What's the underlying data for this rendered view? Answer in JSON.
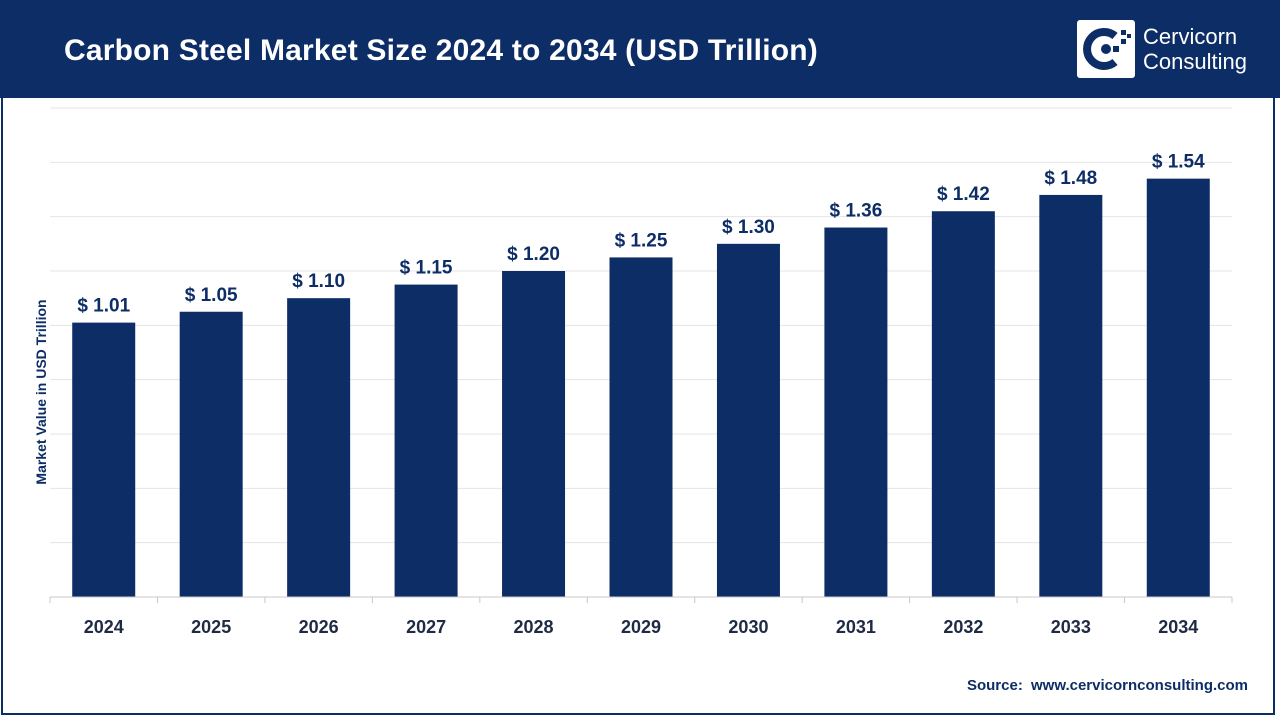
{
  "header": {
    "title": "Carbon Steel Market Size 2024 to 2034 (USD Trillion)",
    "brand_line1": "Cervicorn",
    "brand_line2": "Consulting",
    "brand_icon": "cervicorn-logo-icon"
  },
  "colors": {
    "header_bg": "#0d2d66",
    "bar": "#0d2d66",
    "label": "#0d2d66",
    "tick_text": "#1f2a44",
    "grid": "#e4e4e4"
  },
  "chart_data": {
    "type": "bar",
    "title": "Carbon Steel Market Size 2024 to 2034 (USD Trillion)",
    "xlabel": "",
    "ylabel": "Market Value in USD Trillion",
    "categories": [
      "2024",
      "2025",
      "2026",
      "2027",
      "2028",
      "2029",
      "2030",
      "2031",
      "2032",
      "2033",
      "2034"
    ],
    "values": [
      1.01,
      1.05,
      1.1,
      1.15,
      1.2,
      1.25,
      1.3,
      1.36,
      1.42,
      1.48,
      1.54
    ],
    "data_labels": [
      "$ 1.01",
      "$ 1.05",
      "$ 1.10",
      "$ 1.15",
      "$ 1.20",
      "$ 1.25",
      "$ 1.30",
      "$ 1.36",
      "$ 1.42",
      "$ 1.48",
      "$ 1.54"
    ],
    "ylim": [
      0,
      1.8
    ],
    "grid": true,
    "legend": "none"
  },
  "source": {
    "label": "Source:",
    "url": "www.cervicornconsulting.com"
  }
}
